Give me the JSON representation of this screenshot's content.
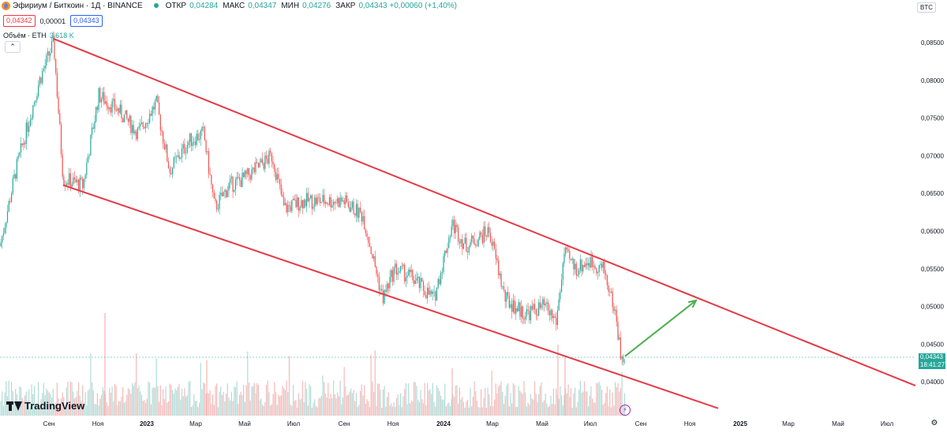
{
  "header": {
    "title": "Эфириум / Биткоин · 1Д · BINANCE",
    "ohlc": [
      {
        "key": "ОТКР",
        "value": "0,04284"
      },
      {
        "key": "МАКС",
        "value": "0,04347"
      },
      {
        "key": "МИН",
        "value": "0,04276"
      },
      {
        "key": "ЗАКР",
        "value": "0,04343 +0,00060 (+1,40%)"
      }
    ]
  },
  "price_row": {
    "bid": "0,04342",
    "spread": "0,00001",
    "ask": "0,04343"
  },
  "volume": {
    "label": "Объём · ETH",
    "value": "3,618 K"
  },
  "currency": "BTC",
  "last_price": {
    "value": "0,04343",
    "countdown": "18:41:27"
  },
  "branding": "TradingView",
  "colors": {
    "up": "#26a69a",
    "down": "#ef5350",
    "channel": "#e53946",
    "arrow": "#4caf50"
  },
  "chart_data": {
    "type": "candlestick",
    "y_ticks": [
      "0,08500",
      "0,08000",
      "0,07500",
      "0,07000",
      "0,06500",
      "0,06000",
      "0,05500",
      "0,05000",
      "0,04500",
      "0,04000"
    ],
    "x_ticks": [
      "Сен",
      "Ноя",
      "2023",
      "Мар",
      "Май",
      "Июл",
      "Сен",
      "Ноя",
      "2024",
      "Мар",
      "Май",
      "Июл",
      "Сен",
      "Ноя",
      "2025",
      "Мар",
      "Май",
      "Июл"
    ],
    "approx_close_path": [
      [
        0,
        0.058
      ],
      [
        20,
        0.068
      ],
      [
        50,
        0.08
      ],
      [
        68,
        0.085
      ],
      [
        80,
        0.067
      ],
      [
        105,
        0.066
      ],
      [
        125,
        0.078
      ],
      [
        150,
        0.076
      ],
      [
        175,
        0.073
      ],
      [
        198,
        0.077
      ],
      [
        215,
        0.068
      ],
      [
        240,
        0.072
      ],
      [
        258,
        0.073
      ],
      [
        272,
        0.063
      ],
      [
        290,
        0.066
      ],
      [
        310,
        0.067
      ],
      [
        345,
        0.07
      ],
      [
        360,
        0.063
      ],
      [
        385,
        0.064
      ],
      [
        410,
        0.064
      ],
      [
        435,
        0.064
      ],
      [
        460,
        0.062
      ],
      [
        485,
        0.051
      ],
      [
        500,
        0.055
      ],
      [
        520,
        0.054
      ],
      [
        550,
        0.051
      ],
      [
        573,
        0.061
      ],
      [
        590,
        0.058
      ],
      [
        620,
        0.06
      ],
      [
        640,
        0.051
      ],
      [
        665,
        0.049
      ],
      [
        690,
        0.05
      ],
      [
        705,
        0.048
      ],
      [
        715,
        0.057
      ],
      [
        730,
        0.055
      ],
      [
        745,
        0.056
      ],
      [
        765,
        0.055
      ],
      [
        780,
        0.049
      ],
      [
        788,
        0.0425
      ],
      [
        792,
        0.0434
      ]
    ],
    "channel_upper": [
      [
        68,
        0.0855
      ],
      [
        1160,
        0.0395
      ]
    ],
    "channel_lower": [
      [
        80,
        0.0661
      ],
      [
        910,
        0.0365
      ]
    ],
    "projection_arrow": [
      [
        792,
        0.0434
      ],
      [
        882,
        0.0508
      ]
    ]
  }
}
